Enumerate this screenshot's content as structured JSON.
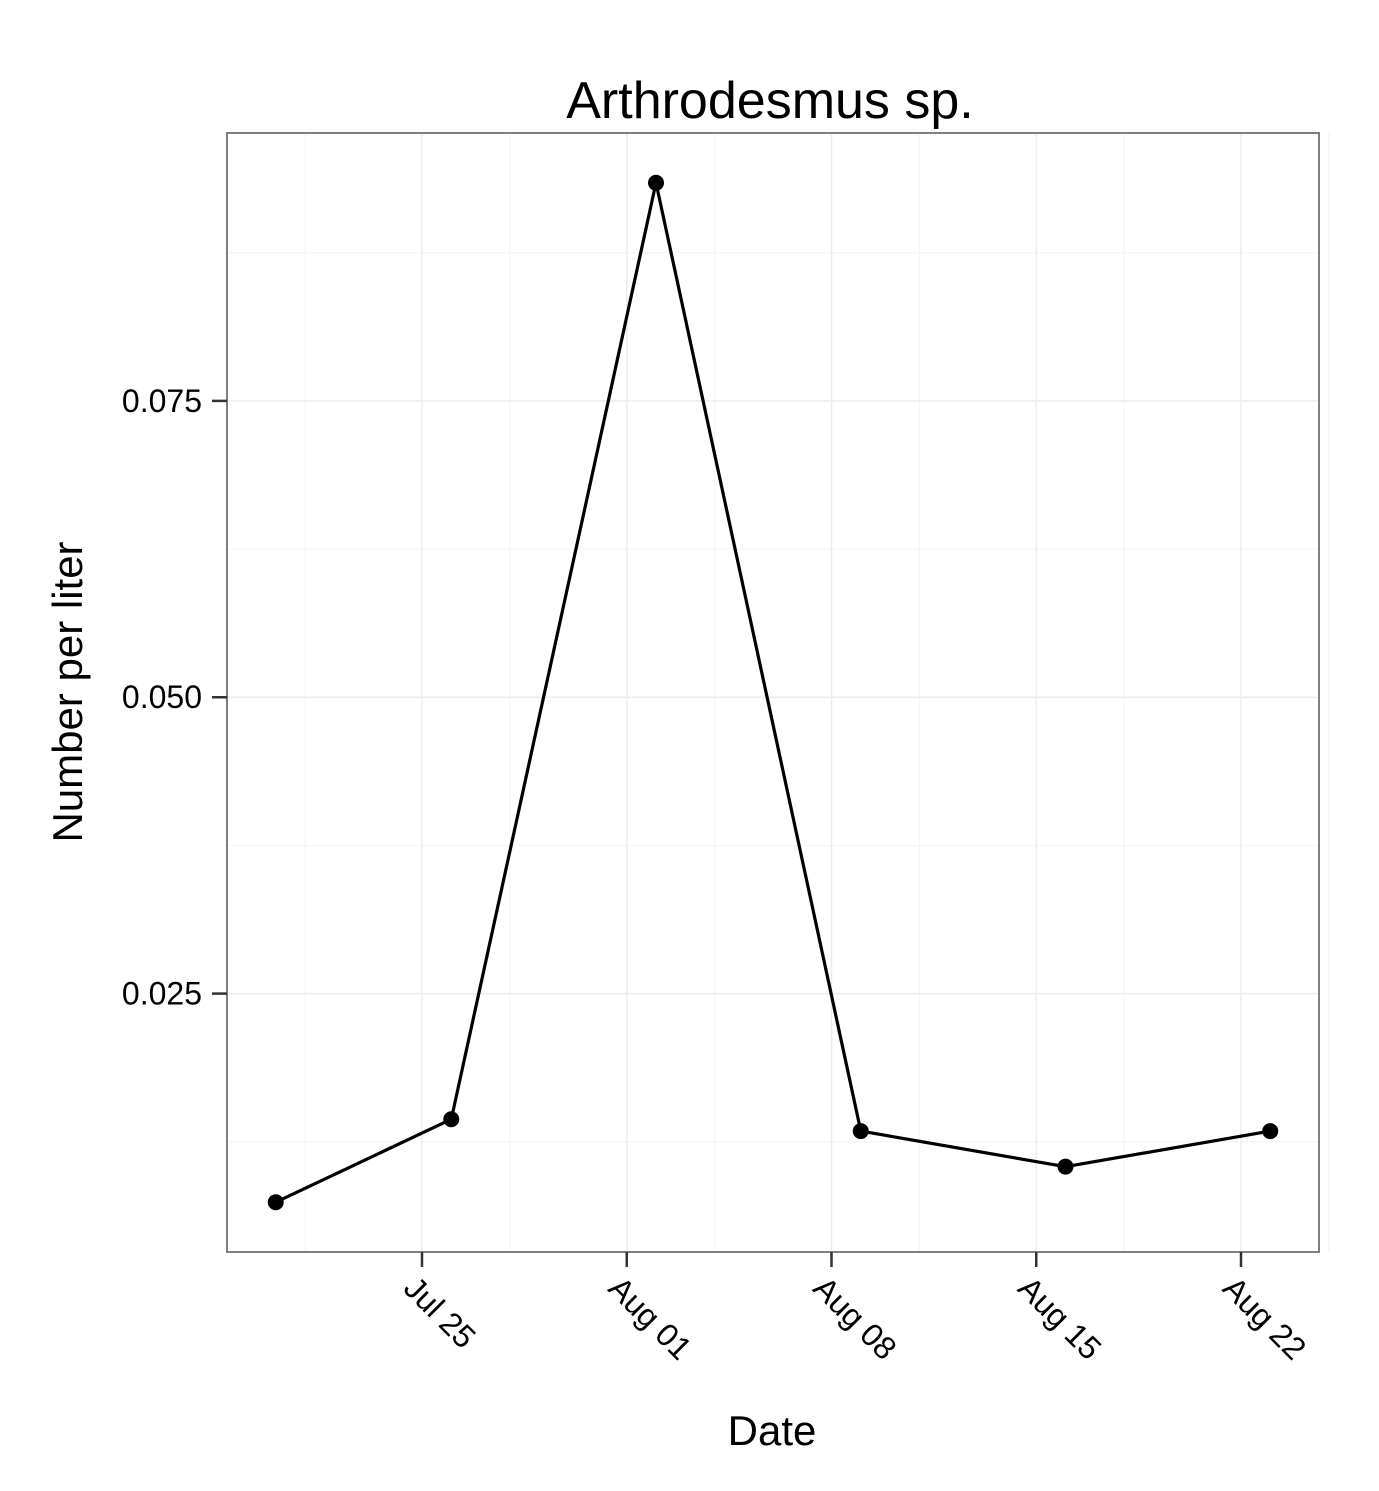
{
  "chart_data": {
    "type": "line",
    "title": "Arthrodesmus sp.",
    "xlabel": "Date",
    "ylabel": "Number per liter",
    "x": [
      "2012-07-20",
      "2012-07-26",
      "2012-08-02",
      "2012-08-09",
      "2012-08-16",
      "2012-08-23"
    ],
    "values": [
      0.0074,
      0.0144,
      0.0934,
      0.0134,
      0.0104,
      0.0134
    ],
    "x_ticks": [
      {
        "date": "2012-07-25",
        "label": "Jul 25"
      },
      {
        "date": "2012-08-01",
        "label": "Aug 01"
      },
      {
        "date": "2012-08-08",
        "label": "Aug 08"
      },
      {
        "date": "2012-08-15",
        "label": "Aug 15"
      },
      {
        "date": "2012-08-22",
        "label": "Aug 22"
      }
    ],
    "x_minor_ticks": [
      "2012-07-21",
      "2012-07-28",
      "2012-08-04",
      "2012-08-11",
      "2012-08-18",
      "2012-08-25"
    ],
    "y_ticks": [
      {
        "value": 0.025,
        "label": "0.025"
      },
      {
        "value": 0.05,
        "label": "0.050"
      },
      {
        "value": 0.075,
        "label": "0.075"
      }
    ],
    "y_minor_ticks": [
      0.0125,
      0.0375,
      0.0625,
      0.0875
    ],
    "xlim": [
      "2012-07-18T08:00",
      "2012-08-24T16:00"
    ],
    "ylim": [
      0.0032,
      0.0976
    ],
    "grid": true,
    "colors": {
      "line": "#000000",
      "grid": "#ebebeb",
      "border": "#7f7f7f"
    }
  }
}
